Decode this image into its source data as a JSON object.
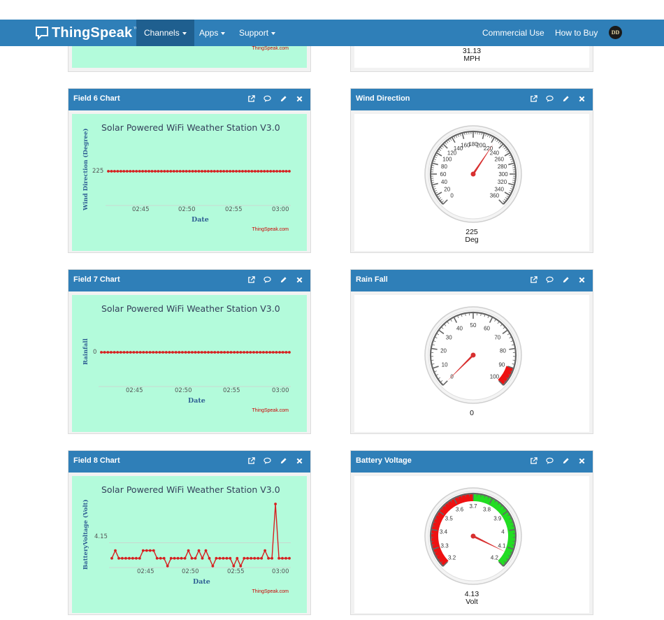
{
  "nav": {
    "brand": "ThingSpeak",
    "brand_tm": "™",
    "items": [
      {
        "label": "Channels",
        "active": true,
        "dropdown": true
      },
      {
        "label": "Apps",
        "active": false,
        "dropdown": true
      },
      {
        "label": "Support",
        "active": false,
        "dropdown": true
      }
    ],
    "right_items": [
      "Commercial Use",
      "How to Buy"
    ],
    "avatar": "DD"
  },
  "colors": {
    "navbar": "#2f7fb8",
    "chart_bg": "#b3fbdb",
    "series": "#d62020",
    "gauge_red": "#ee1111",
    "gauge_green": "#22dd22"
  },
  "top_partial": {
    "left_credit": "ThingSpeak.com",
    "right_value": "31.13",
    "right_unit": "MPH"
  },
  "panels": {
    "field6": {
      "title": "Field 6 Chart",
      "chart_title": "Solar Powered WiFi Weather Station V3.0",
      "y_axis_label": "Wind Direction (Degree)",
      "x_axis_label": "Date",
      "y_tick": "225",
      "x_ticks": [
        "02:45",
        "02:50",
        "02:55",
        "03:00"
      ],
      "credit": "ThingSpeak.com"
    },
    "wind_direction": {
      "title": "Wind Direction",
      "value": "225",
      "unit": "Deg",
      "ticks": [
        "0",
        "20",
        "40",
        "60",
        "80",
        "100",
        "120",
        "140",
        "160",
        "180",
        "200",
        "220",
        "240",
        "260",
        "280",
        "300",
        "320",
        "340",
        "360"
      ]
    },
    "field7": {
      "title": "Field 7 Chart",
      "chart_title": "Solar Powered WiFi Weather Station V3.0",
      "y_axis_label": "Rainfall",
      "x_axis_label": "Date",
      "y_tick": "0",
      "x_ticks": [
        "02:45",
        "02:50",
        "02:55",
        "03:00"
      ],
      "credit": "ThingSpeak.com"
    },
    "rain_fall": {
      "title": "Rain Fall",
      "value": "0",
      "unit": "",
      "ticks": [
        "0",
        "10",
        "20",
        "30",
        "40",
        "50",
        "60",
        "70",
        "80",
        "90",
        "100"
      ]
    },
    "field8": {
      "title": "Field 8 Chart",
      "chart_title": "Solar Powered WiFi Weather Station V3.0",
      "y_axis_label": "BatteryVoltage (Volt)",
      "x_axis_label": "Date",
      "y_tick": "4.15",
      "x_ticks": [
        "02:45",
        "02:50",
        "02:55",
        "03:00"
      ],
      "credit": "ThingSpeak.com"
    },
    "battery_voltage": {
      "title": "Battery Voltage",
      "value": "4.13",
      "unit": "Volt",
      "ticks": [
        "3.2",
        "3.3",
        "3.4",
        "3.5",
        "3.6",
        "3.7",
        "3.8",
        "3.9",
        "4",
        "4.1",
        "4.2"
      ]
    }
  },
  "chart_data": [
    {
      "type": "line",
      "title": "Solar Powered WiFi Weather Station V3.0",
      "xlabel": "Date",
      "ylabel": "Wind Direction (Degree)",
      "x_ticks": [
        "02:45",
        "02:50",
        "02:55",
        "03:00"
      ],
      "series": [
        {
          "values": [
            225,
            225,
            225,
            225,
            225,
            225,
            225,
            225,
            225,
            225,
            225,
            225,
            225,
            225,
            225,
            225,
            225,
            225,
            225,
            225,
            225,
            225,
            225,
            225,
            225,
            225,
            225,
            225,
            225,
            225,
            225,
            225,
            225,
            225,
            225,
            225,
            225,
            225,
            225,
            225,
            225,
            225,
            225,
            225,
            225,
            225,
            225,
            225,
            225,
            225,
            225,
            225,
            225,
            225,
            225,
            225,
            225,
            225,
            225
          ]
        }
      ]
    },
    {
      "type": "line",
      "title": "Solar Powered WiFi Weather Station V3.0",
      "xlabel": "Date",
      "ylabel": "Rainfall",
      "x_ticks": [
        "02:45",
        "02:50",
        "02:55",
        "03:00"
      ],
      "series": [
        {
          "values": [
            0,
            0,
            0,
            0,
            0,
            0,
            0,
            0,
            0,
            0,
            0,
            0,
            0,
            0,
            0,
            0,
            0,
            0,
            0,
            0,
            0,
            0,
            0,
            0,
            0,
            0,
            0,
            0,
            0,
            0,
            0,
            0,
            0,
            0,
            0,
            0,
            0,
            0,
            0,
            0,
            0,
            0,
            0,
            0,
            0,
            0,
            0,
            0,
            0,
            0,
            0,
            0,
            0,
            0,
            0,
            0,
            0,
            0,
            0
          ]
        }
      ]
    },
    {
      "type": "line",
      "title": "Solar Powered WiFi Weather Station V3.0",
      "xlabel": "Date",
      "ylabel": "BatteryVoltage (Volt)",
      "x_ticks": [
        "02:45",
        "02:50",
        "02:55",
        "03:00"
      ],
      "series": [
        {
          "values": [
            4.13,
            4.14,
            4.13,
            4.13,
            4.13,
            4.13,
            4.13,
            4.13,
            4.13,
            4.14,
            4.14,
            4.14,
            4.14,
            4.13,
            4.13,
            4.13,
            4.12,
            4.13,
            4.13,
            4.13,
            4.13,
            4.13,
            4.14,
            4.13,
            4.13,
            4.14,
            4.13,
            4.14,
            4.13,
            4.12,
            4.13,
            4.13,
            4.13,
            4.13,
            4.13,
            4.12,
            4.13,
            4.12,
            4.13,
            4.13,
            4.13,
            4.13,
            4.13,
            4.13,
            4.14,
            4.13,
            4.13,
            4.2,
            4.13,
            4.13,
            4.13,
            4.13
          ]
        }
      ]
    }
  ]
}
